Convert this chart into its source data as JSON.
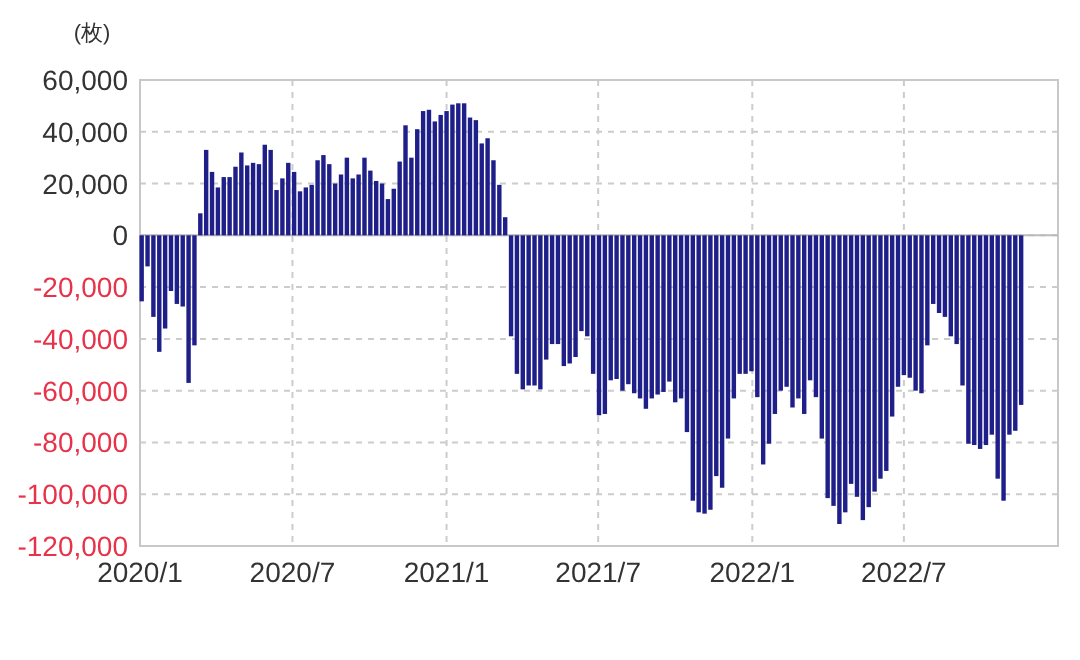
{
  "chart_data": {
    "type": "bar",
    "ylabel": "(枚)",
    "color": "#1f1f8a",
    "grid": true,
    "xlim": [
      "2020-01-01",
      "2023-01-01"
    ],
    "xticks": [
      {
        "value": "2020-01-01",
        "label": "2020/1"
      },
      {
        "value": "2020-07-01",
        "label": "2020/7"
      },
      {
        "value": "2021-01-01",
        "label": "2021/1"
      },
      {
        "value": "2021-07-01",
        "label": "2021/7"
      },
      {
        "value": "2022-01-01",
        "label": "2022/1"
      },
      {
        "value": "2022-07-01",
        "label": "2022/7"
      }
    ],
    "ylim": [
      -120000,
      60000
    ],
    "yticks": [
      {
        "value": -120000,
        "label": "-120,000"
      },
      {
        "value": -100000,
        "label": "-100,000"
      },
      {
        "value": -80000,
        "label": "-80,000"
      },
      {
        "value": -60000,
        "label": "-60,000"
      },
      {
        "value": -40000,
        "label": "-40,000"
      },
      {
        "value": -20000,
        "label": "-20,000"
      },
      {
        "value": 0,
        "label": "0"
      },
      {
        "value": 20000,
        "label": "20,000"
      },
      {
        "value": 40000,
        "label": "40,000"
      },
      {
        "value": 60000,
        "label": "60,000"
      }
    ],
    "x": [
      "2020-01-03",
      "2020-01-10",
      "2020-01-17",
      "2020-01-24",
      "2020-01-31",
      "2020-02-07",
      "2020-02-14",
      "2020-02-21",
      "2020-02-28",
      "2020-03-06",
      "2020-03-13",
      "2020-03-20",
      "2020-03-27",
      "2020-04-03",
      "2020-04-10",
      "2020-04-17",
      "2020-04-24",
      "2020-05-01",
      "2020-05-08",
      "2020-05-15",
      "2020-05-22",
      "2020-05-29",
      "2020-06-05",
      "2020-06-12",
      "2020-06-19",
      "2020-06-26",
      "2020-07-03",
      "2020-07-10",
      "2020-07-17",
      "2020-07-24",
      "2020-07-31",
      "2020-08-07",
      "2020-08-14",
      "2020-08-21",
      "2020-08-28",
      "2020-09-04",
      "2020-09-11",
      "2020-09-18",
      "2020-09-25",
      "2020-10-02",
      "2020-10-09",
      "2020-10-16",
      "2020-10-23",
      "2020-10-30",
      "2020-11-06",
      "2020-11-13",
      "2020-11-20",
      "2020-11-27",
      "2020-12-04",
      "2020-12-11",
      "2020-12-18",
      "2020-12-25",
      "2021-01-01",
      "2021-01-08",
      "2021-01-15",
      "2021-01-22",
      "2021-01-29",
      "2021-02-05",
      "2021-02-12",
      "2021-02-19",
      "2021-02-26",
      "2021-03-05",
      "2021-03-12",
      "2021-03-19",
      "2021-03-26",
      "2021-04-02",
      "2021-04-09",
      "2021-04-16",
      "2021-04-23",
      "2021-04-30",
      "2021-05-07",
      "2021-05-14",
      "2021-05-21",
      "2021-05-28",
      "2021-06-04",
      "2021-06-11",
      "2021-06-18",
      "2021-06-25",
      "2021-07-02",
      "2021-07-09",
      "2021-07-16",
      "2021-07-23",
      "2021-07-30",
      "2021-08-06",
      "2021-08-13",
      "2021-08-20",
      "2021-08-27",
      "2021-09-03",
      "2021-09-10",
      "2021-09-17",
      "2021-09-24",
      "2021-10-01",
      "2021-10-08",
      "2021-10-15",
      "2021-10-22",
      "2021-10-29",
      "2021-11-05",
      "2021-11-12",
      "2021-11-19",
      "2021-11-26",
      "2021-12-03",
      "2021-12-10",
      "2021-12-17",
      "2021-12-24",
      "2021-12-31",
      "2022-01-07",
      "2022-01-14",
      "2022-01-21",
      "2022-01-28",
      "2022-02-04",
      "2022-02-11",
      "2022-02-18",
      "2022-02-25",
      "2022-03-04",
      "2022-03-11",
      "2022-03-18",
      "2022-03-25",
      "2022-04-01",
      "2022-04-08",
      "2022-04-15",
      "2022-04-22",
      "2022-04-29",
      "2022-05-06",
      "2022-05-13",
      "2022-05-20",
      "2022-05-27",
      "2022-06-03",
      "2022-06-10",
      "2022-06-17",
      "2022-06-24",
      "2022-07-01",
      "2022-07-08",
      "2022-07-15",
      "2022-07-22",
      "2022-07-29",
      "2022-08-05",
      "2022-08-12",
      "2022-08-19",
      "2022-08-26",
      "2022-09-02",
      "2022-09-09",
      "2022-09-16",
      "2022-09-23",
      "2022-09-30",
      "2022-10-07",
      "2022-10-14",
      "2022-10-21",
      "2022-10-28",
      "2022-11-04",
      "2022-11-11",
      "2022-11-18"
    ],
    "values": [
      -25500,
      -12000,
      -31500,
      -45000,
      -36000,
      -21500,
      -26500,
      -27500,
      -57000,
      -42500,
      8500,
      33000,
      24500,
      18500,
      22500,
      22500,
      26500,
      32000,
      27000,
      28000,
      27500,
      35000,
      33000,
      17500,
      22000,
      28000,
      24500,
      17000,
      18500,
      19500,
      29000,
      31000,
      27500,
      20000,
      23500,
      30000,
      22000,
      23500,
      30000,
      25000,
      21000,
      20000,
      14000,
      18000,
      28500,
      42500,
      30000,
      41000,
      48000,
      48500,
      44000,
      46500,
      48000,
      50500,
      51000,
      51000,
      45500,
      44500,
      35500,
      37500,
      29000,
      19500,
      7000,
      -39000,
      -53500,
      -59500,
      -58000,
      -58000,
      -59500,
      -48000,
      -42000,
      -42000,
      -50500,
      -49500,
      -47000,
      -37000,
      -39000,
      -53500,
      -69500,
      -69000,
      -56000,
      -55500,
      -60000,
      -57500,
      -61000,
      -63000,
      -67000,
      -63000,
      -61500,
      -60500,
      -56500,
      -64500,
      -63000,
      -76000,
      -102500,
      -107000,
      -107500,
      -106000,
      -93000,
      -97500,
      -78500,
      -63000,
      -53500,
      -53500,
      -52500,
      -62500,
      -88500,
      -80500,
      -69000,
      -60000,
      -58500,
      -66500,
      -63000,
      -69000,
      -56000,
      -62500,
      -78500,
      -101500,
      -104500,
      -111500,
      -107000,
      -96000,
      -101000,
      -110000,
      -105000,
      -99000,
      -94000,
      -91000,
      -70000,
      -58500,
      -54000,
      -55000,
      -60000,
      -61000,
      -42500,
      -26500,
      -30000,
      -31500,
      -39000,
      -42000,
      -58000,
      -80500,
      -81000,
      -82500,
      -81000,
      -77000,
      -94000,
      -102500,
      -77000,
      -75500,
      -65500
    ]
  }
}
